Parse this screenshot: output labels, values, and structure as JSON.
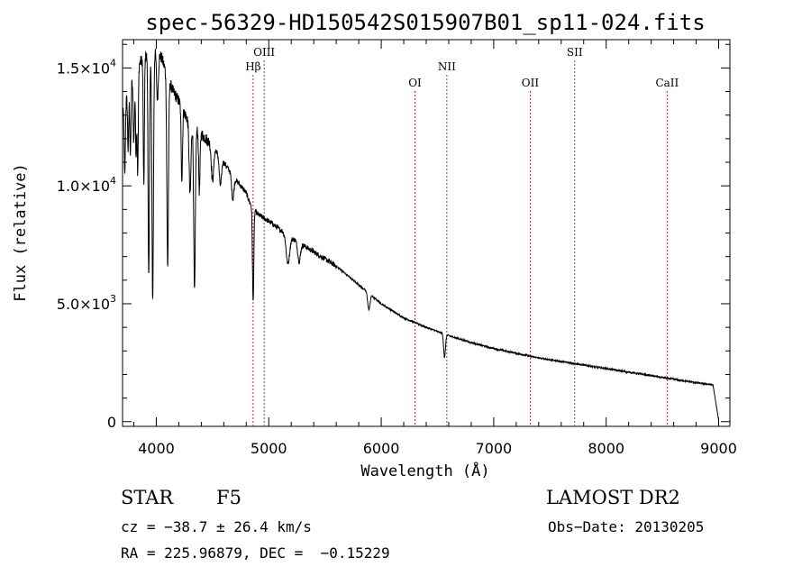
{
  "chart_data": {
    "type": "line",
    "title": "spec-56329-HD150542S015907B01_sp11-024.fits",
    "xlabel": "Wavelength (Å)",
    "ylabel": "Flux (relative)",
    "xlim": [
      3700,
      9100
    ],
    "ylim": [
      -200,
      16200
    ],
    "x_ticks": [
      {
        "value": 4000,
        "label": "4000"
      },
      {
        "value": 5000,
        "label": "5000"
      },
      {
        "value": 6000,
        "label": "6000"
      },
      {
        "value": 7000,
        "label": "7000"
      },
      {
        "value": 8000,
        "label": "8000"
      },
      {
        "value": 9000,
        "label": "9000"
      }
    ],
    "y_ticks": [
      {
        "value": 0,
        "mantissa": "0",
        "exponent": ""
      },
      {
        "value": 5000,
        "mantissa": "5.0×10",
        "exponent": "3"
      },
      {
        "value": 10000,
        "mantissa": "1.0×10",
        "exponent": "4"
      },
      {
        "value": 15000,
        "mantissa": "1.5×10",
        "exponent": "4"
      }
    ],
    "line_color": "#000000",
    "marker_color": "#b03030",
    "spectral_lines": [
      {
        "name": "Hβ",
        "wavelength": 4861,
        "label_level": 2
      },
      {
        "name": "OIII",
        "wavelength": 4959,
        "label_level": 1
      },
      {
        "name": "OI",
        "wavelength": 6300,
        "label_level": 3
      },
      {
        "name": "NII",
        "wavelength": 6583,
        "label_level": 2
      },
      {
        "name": "OII",
        "wavelength": 7325,
        "label_level": 3
      },
      {
        "name": "SII",
        "wavelength": 7720,
        "label_level": 1
      },
      {
        "name": "CaII",
        "wavelength": 8542,
        "label_level": 3
      }
    ],
    "continuum": [
      [
        3700,
        13000
      ],
      [
        3750,
        14000
      ],
      [
        3800,
        14700
      ],
      [
        3850,
        15200
      ],
      [
        3900,
        15500
      ],
      [
        3950,
        15600
      ],
      [
        4000,
        15800
      ],
      [
        4050,
        15400
      ],
      [
        4100,
        14600
      ],
      [
        4150,
        14000
      ],
      [
        4200,
        13600
      ],
      [
        4300,
        12600
      ],
      [
        4400,
        12200
      ],
      [
        4500,
        11700
      ],
      [
        4600,
        11000
      ],
      [
        4700,
        10300
      ],
      [
        4800,
        9700
      ],
      [
        4830,
        9300
      ],
      [
        4900,
        8800
      ],
      [
        5000,
        8500
      ],
      [
        5200,
        7800
      ],
      [
        5400,
        7200
      ],
      [
        5600,
        6600
      ],
      [
        5800,
        5800
      ],
      [
        6000,
        5000
      ],
      [
        6200,
        4400
      ],
      [
        6400,
        4000
      ],
      [
        6600,
        3650
      ],
      [
        6800,
        3350
      ],
      [
        7000,
        3100
      ],
      [
        7200,
        2900
      ],
      [
        7400,
        2700
      ],
      [
        7600,
        2550
      ],
      [
        7800,
        2400
      ],
      [
        8000,
        2250
      ],
      [
        8200,
        2100
      ],
      [
        8400,
        1950
      ],
      [
        8600,
        1800
      ],
      [
        8800,
        1650
      ],
      [
        8960,
        1550
      ],
      [
        9000,
        1550
      ]
    ],
    "absorption_features": [
      [
        3720,
        3000,
        5
      ],
      [
        3750,
        2500,
        5
      ],
      [
        3770,
        3000,
        5
      ],
      [
        3800,
        2800,
        6
      ],
      [
        3820,
        3500,
        5
      ],
      [
        3835,
        4500,
        5
      ],
      [
        3889,
        5500,
        5
      ],
      [
        3933,
        9500,
        6
      ],
      [
        3968,
        10500,
        7
      ],
      [
        4010,
        2000,
        8
      ],
      [
        4101,
        8000,
        7
      ],
      [
        4227,
        3000,
        6
      ],
      [
        4300,
        3000,
        8
      ],
      [
        4340,
        7000,
        7
      ],
      [
        4383,
        2500,
        6
      ],
      [
        4500,
        1500,
        10
      ],
      [
        4570,
        1200,
        10
      ],
      [
        4680,
        1000,
        10
      ],
      [
        4861,
        4000,
        6
      ],
      [
        5170,
        1200,
        15
      ],
      [
        5270,
        800,
        12
      ],
      [
        5890,
        700,
        10
      ],
      [
        6563,
        1000,
        8
      ]
    ],
    "series": [
      {
        "name": "",
        "x": [],
        "y": []
      }
    ]
  },
  "info": {
    "obj_class": "STAR",
    "subclass": "F5",
    "survey": "LAMOST DR2",
    "cz": "cz = −38.7 ± 26.4 km/s",
    "obs_date": "Obs−Date: 20130205",
    "coords": "RA = 225.96879, DEC =  −0.15229"
  }
}
